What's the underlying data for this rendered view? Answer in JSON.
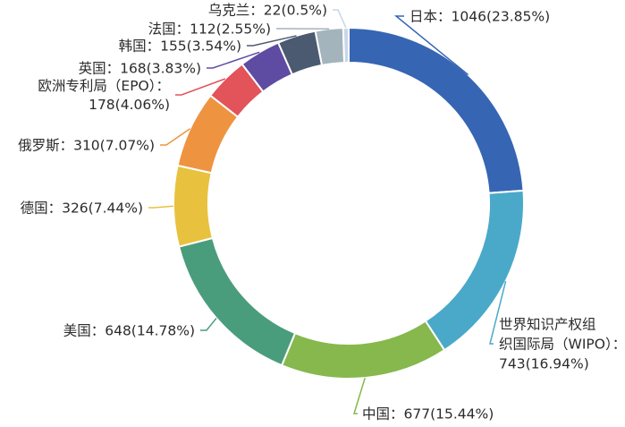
{
  "chart_data": {
    "type": "pie",
    "variant": "donut",
    "title": "",
    "slices": [
      {
        "name": "日本",
        "value": 1046,
        "percent": "23.85%",
        "color": "#3665B3",
        "lines": [
          "日本：1046(23.85%)"
        ]
      },
      {
        "name": "世界知识产权组织国际局（WIPO）",
        "value": 743,
        "percent": "16.94%",
        "color": "#4AA9C8",
        "lines": [
          "世界知识产权组",
          "织国际局（WIPO）：",
          "743(16.94%)"
        ]
      },
      {
        "name": "中国",
        "value": 677,
        "percent": "15.44%",
        "color": "#86B84D",
        "lines": [
          "中国：677(15.44%)"
        ]
      },
      {
        "name": "美国",
        "value": 648,
        "percent": "14.78%",
        "color": "#4A9D7C",
        "lines": [
          "美国：648(14.78%)"
        ]
      },
      {
        "name": "德国",
        "value": 326,
        "percent": "7.44%",
        "color": "#E8C23E",
        "lines": [
          "德国：326(7.44%)"
        ]
      },
      {
        "name": "俄罗斯",
        "value": 310,
        "percent": "7.07%",
        "color": "#EE9440",
        "lines": [
          "俄罗斯：310(7.07%)"
        ]
      },
      {
        "name": "欧洲专利局（EPO）",
        "value": 178,
        "percent": "4.06%",
        "color": "#E2535A",
        "lines": [
          "欧洲专利局（EPO）：",
          "178(4.06%)"
        ]
      },
      {
        "name": "英国",
        "value": 168,
        "percent": "3.83%",
        "color": "#5E4BA2",
        "lines": [
          "英国：168(3.83%)"
        ]
      },
      {
        "name": "韩国",
        "value": 155,
        "percent": "3.54%",
        "color": "#4B5A70",
        "lines": [
          "韩国：155(3.54%)"
        ]
      },
      {
        "name": "法国",
        "value": 112,
        "percent": "2.55%",
        "color": "#A4B4BC",
        "lines": [
          "法国：112(2.55%)"
        ]
      },
      {
        "name": "乌克兰",
        "value": 22,
        "percent": "0.5%",
        "color": "#C8D6E8",
        "lines": [
          "乌克兰：22(0.5%)"
        ]
      }
    ]
  }
}
